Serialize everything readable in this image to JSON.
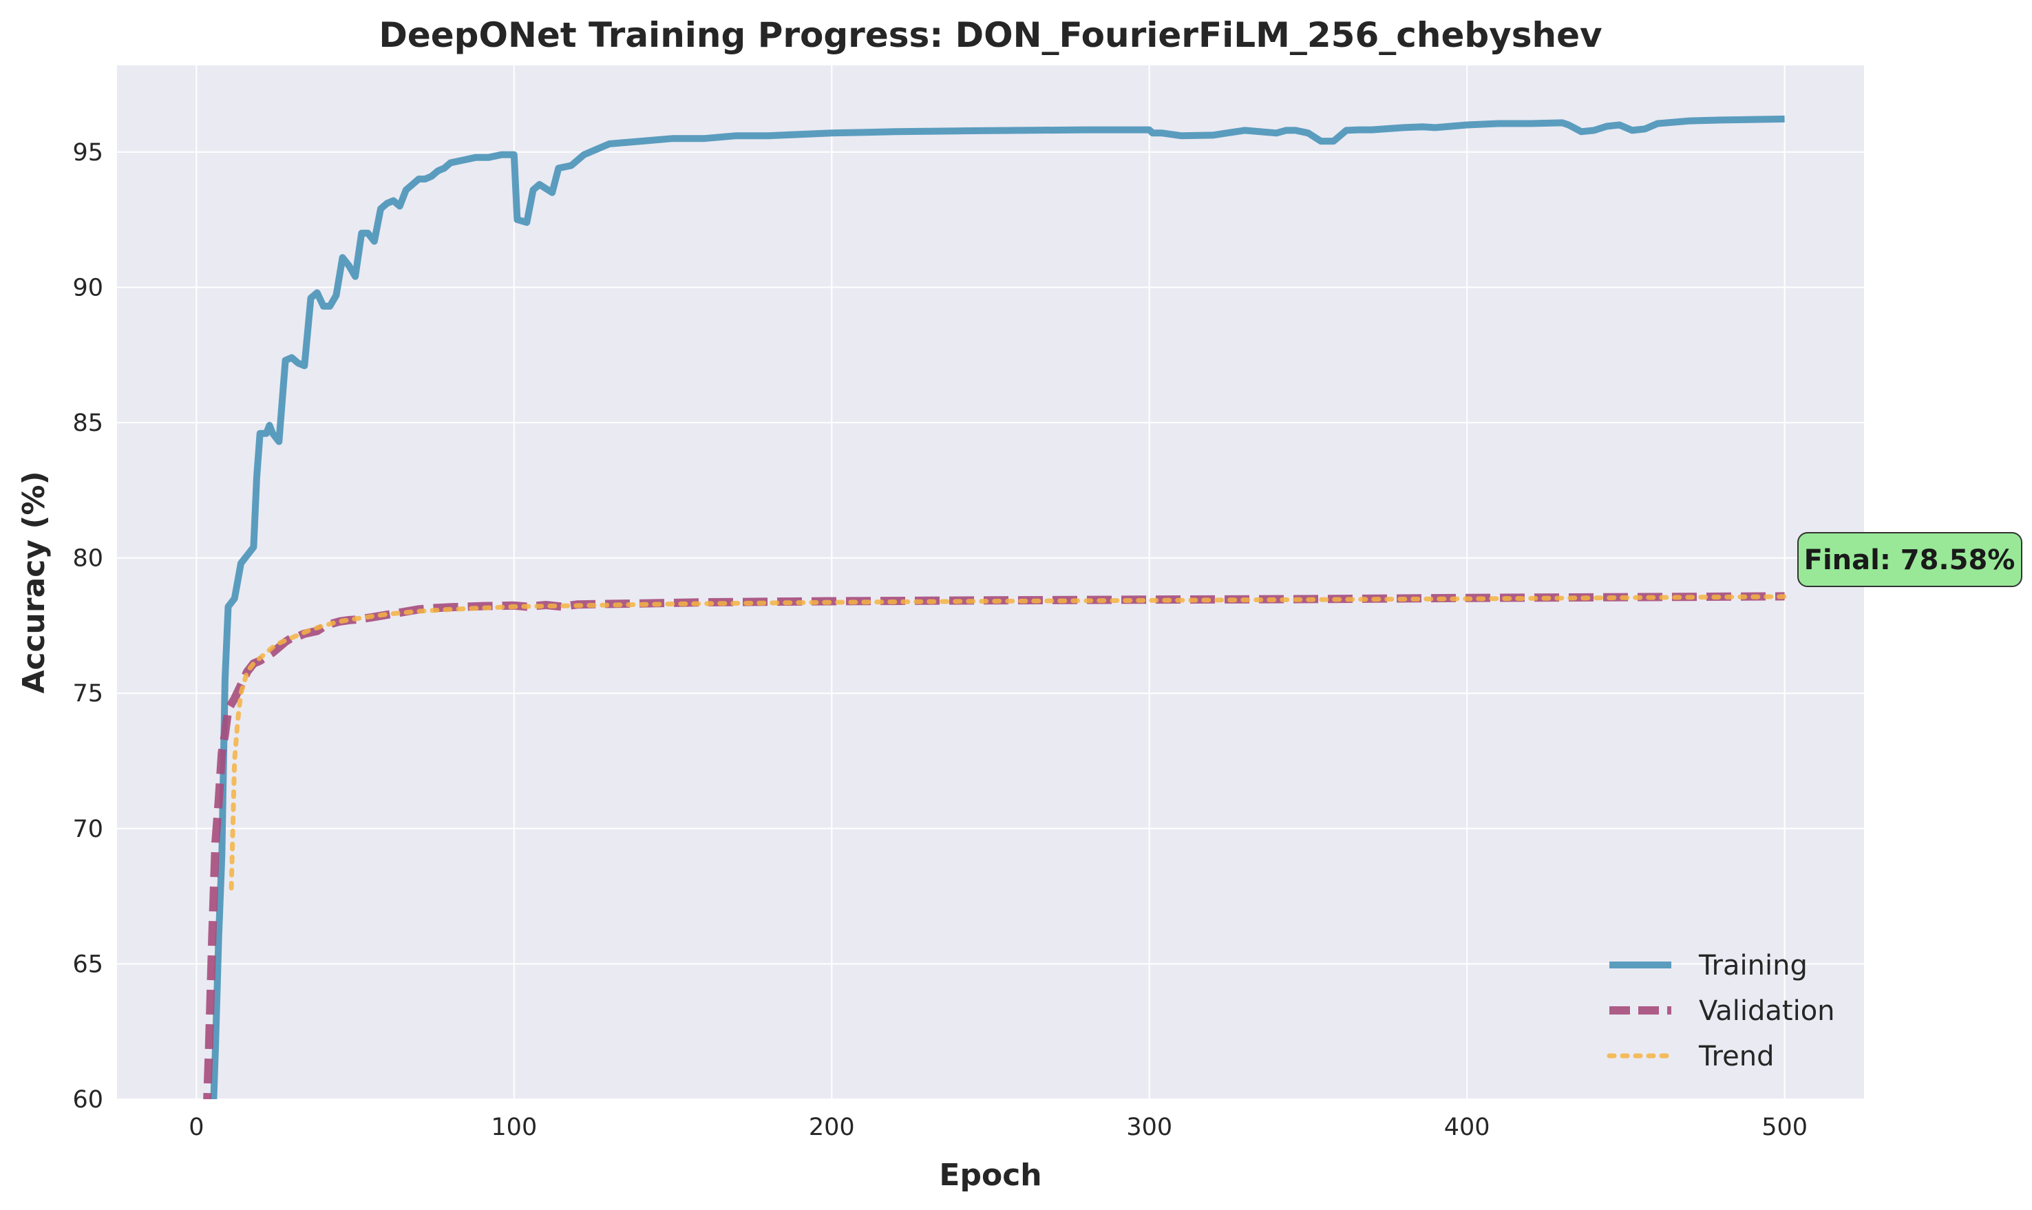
{
  "chart_data": {
    "type": "line",
    "title": "DeepONet Training Progress: DON_FourierFiLM_256_chebyshev",
    "xlabel": "Epoch",
    "ylabel": "Accuracy (%)",
    "xlim": [
      -25,
      525
    ],
    "ylim": [
      60,
      98.2
    ],
    "xticks": [
      0,
      100,
      200,
      300,
      400,
      500
    ],
    "yticks": [
      60,
      65,
      70,
      75,
      80,
      85,
      90,
      95
    ],
    "grid": true,
    "legend_position": "lower-right",
    "annotation": {
      "text": "Final: 78.58%",
      "x": 500,
      "y": 78.58,
      "color": "#98e898"
    },
    "series": [
      {
        "name": "Training",
        "color": "#4a93b8",
        "style": "solid",
        "x": [
          5,
          6,
          7,
          8,
          9,
          10,
          12,
          14,
          16,
          18,
          19,
          20,
          22,
          23,
          24,
          26,
          28,
          30,
          32,
          34,
          36,
          38,
          40,
          42,
          44,
          46,
          48,
          50,
          52,
          54,
          56,
          58,
          60,
          62,
          64,
          66,
          68,
          70,
          72,
          74,
          76,
          78,
          80,
          84,
          88,
          92,
          96,
          100,
          101,
          104,
          106,
          108,
          112,
          114,
          118,
          122,
          126,
          130,
          140,
          150,
          160,
          170,
          180,
          200,
          220,
          240,
          260,
          280,
          300,
          301,
          304,
          310,
          320,
          330,
          340,
          343,
          346,
          350,
          354,
          358,
          362,
          366,
          370,
          380,
          386,
          390,
          400,
          410,
          420,
          430,
          432,
          436,
          440,
          444,
          448,
          452,
          456,
          460,
          470,
          480,
          490,
          500
        ],
        "values": [
          58.5,
          62,
          66,
          69,
          75.5,
          78.2,
          78.5,
          79.8,
          80.1,
          80.4,
          83,
          84.6,
          84.6,
          84.9,
          84.6,
          84.3,
          87.3,
          87.4,
          87.2,
          87.1,
          89.6,
          89.8,
          89.3,
          89.3,
          89.7,
          91.1,
          90.8,
          90.4,
          92.0,
          92.0,
          91.7,
          92.9,
          93.1,
          93.2,
          93.0,
          93.6,
          93.8,
          94.0,
          94.0,
          94.1,
          94.3,
          94.4,
          94.6,
          94.7,
          94.8,
          94.8,
          94.9,
          94.9,
          92.5,
          92.4,
          93.6,
          93.8,
          93.5,
          94.4,
          94.5,
          94.9,
          95.1,
          95.3,
          95.4,
          95.5,
          95.5,
          95.6,
          95.6,
          95.7,
          95.75,
          95.78,
          95.8,
          95.82,
          95.82,
          95.7,
          95.7,
          95.6,
          95.62,
          95.8,
          95.7,
          95.8,
          95.8,
          95.7,
          95.4,
          95.4,
          95.8,
          95.82,
          95.82,
          95.9,
          95.93,
          95.9,
          96.0,
          96.05,
          96.05,
          96.08,
          96.0,
          95.75,
          95.8,
          95.95,
          96.0,
          95.8,
          95.85,
          96.05,
          96.15,
          96.18,
          96.2,
          96.22
        ]
      },
      {
        "name": "Validation",
        "color": "#a64d7c",
        "style": "dashed",
        "x": [
          2,
          3,
          4,
          5,
          6,
          7,
          8,
          9,
          10,
          12,
          14,
          16,
          18,
          20,
          22,
          24,
          26,
          28,
          30,
          32,
          34,
          36,
          38,
          40,
          42,
          45,
          48,
          50,
          55,
          60,
          65,
          70,
          75,
          80,
          90,
          100,
          104,
          110,
          115,
          120,
          140,
          160,
          200,
          250,
          300,
          350,
          400,
          450,
          500
        ],
        "values": [
          55.5,
          58.5,
          62,
          66,
          69.5,
          71,
          72.8,
          73.5,
          74.4,
          74.8,
          75.3,
          75.8,
          76.1,
          76.2,
          76.35,
          76.5,
          76.7,
          76.9,
          77.05,
          77.1,
          77.2,
          77.25,
          77.3,
          77.45,
          77.55,
          77.65,
          77.7,
          77.72,
          77.8,
          77.9,
          78.0,
          78.1,
          78.15,
          78.18,
          78.22,
          78.24,
          78.2,
          78.26,
          78.2,
          78.28,
          78.32,
          78.36,
          78.4,
          78.43,
          78.46,
          78.48,
          78.52,
          78.55,
          78.58
        ]
      },
      {
        "name": "Trend",
        "color": "#f5b342",
        "style": "dotted",
        "x": [
          11,
          12,
          13,
          14,
          15,
          16,
          18,
          20,
          22,
          24,
          26,
          28,
          30,
          35,
          40,
          45,
          50,
          60,
          70,
          80,
          90,
          100,
          150,
          200,
          250,
          300,
          350,
          400,
          450,
          500
        ],
        "values": [
          67.8,
          72.5,
          74.0,
          75.0,
          75.4,
          75.8,
          76.1,
          76.3,
          76.5,
          76.7,
          76.85,
          76.95,
          77.05,
          77.3,
          77.5,
          77.65,
          77.75,
          77.92,
          78.03,
          78.1,
          78.15,
          78.2,
          78.3,
          78.36,
          78.4,
          78.43,
          78.46,
          78.49,
          78.53,
          78.57
        ]
      }
    ]
  }
}
